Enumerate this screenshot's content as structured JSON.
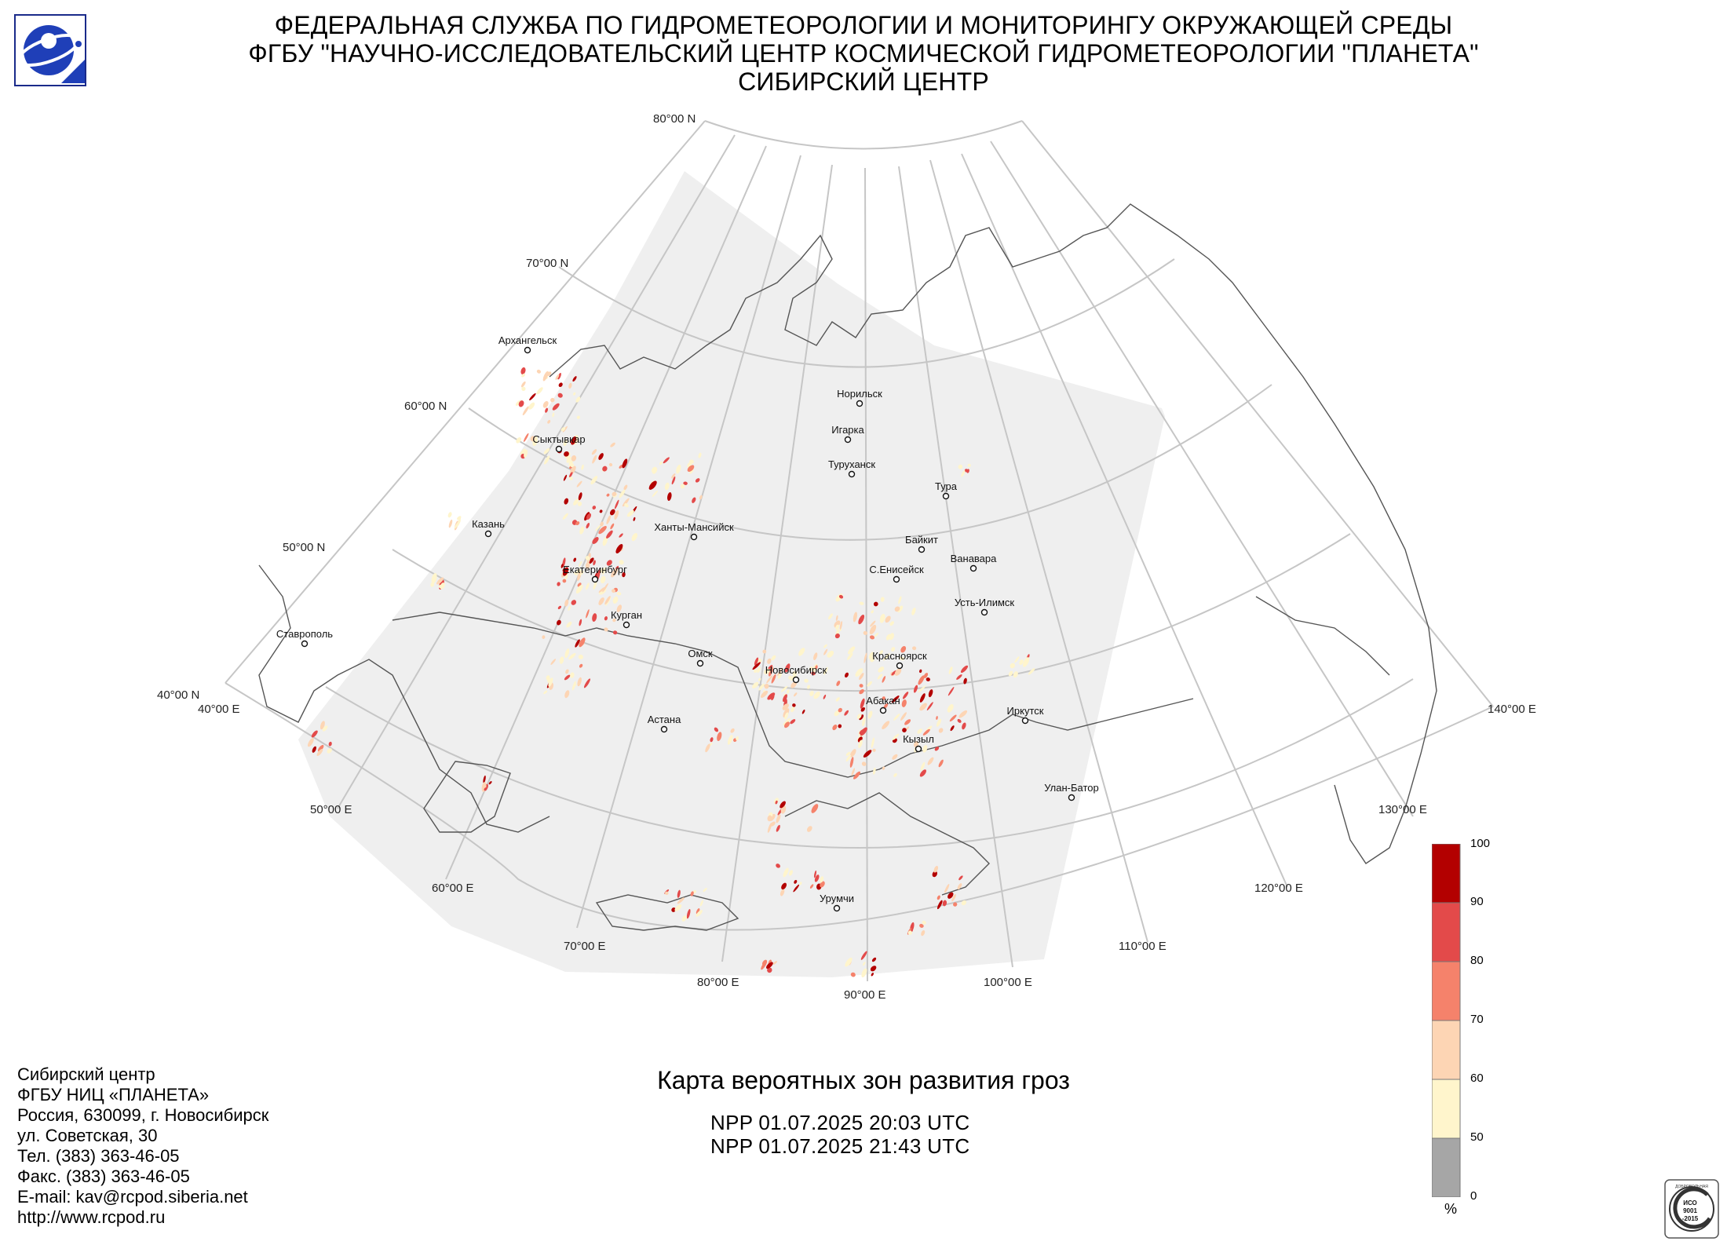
{
  "header": {
    "line1": "ФЕДЕРАЛЬНАЯ СЛУЖБА ПО ГИДРОМЕТЕОРОЛОГИИ И МОНИТОРИНГУ ОКРУЖАЮЩЕЙ СРЕДЫ",
    "line2": "ФГБУ \"НАУЧНО-ИССЛЕДОВАТЕЛЬСКИЙ ЦЕНТР КОСМИЧЕСКОЙ ГИДРОМЕТЕОРОЛОГИИ \"ПЛАНЕТА\"",
    "line3": "СИБИРСКИЙ ЦЕНТР"
  },
  "map": {
    "title": "Карта вероятных зон развития гроз",
    "passes": [
      "NPP 01.07.2025  20:03 UTC",
      "NPP 01.07.2025  21:43 UTC"
    ],
    "lat_labels": [
      "80°00 N",
      "70°00 N",
      "60°00 N",
      "50°00 N",
      "40°00 N"
    ],
    "lon_labels": [
      "40°00 E",
      "50°00 E",
      "60°00 E",
      "70°00 E",
      "80°00 E",
      "90°00 E",
      "100°00 E",
      "110°00 E",
      "120°00 E",
      "130°00 E",
      "140°00 E"
    ],
    "cities": [
      {
        "name": "Архангельск"
      },
      {
        "name": "Норильск"
      },
      {
        "name": "Игарка"
      },
      {
        "name": "Сыктывкар"
      },
      {
        "name": "Туруханск"
      },
      {
        "name": "Тура"
      },
      {
        "name": "Казань"
      },
      {
        "name": "Ханты-Мансийск"
      },
      {
        "name": "Байкит"
      },
      {
        "name": "Ванавара"
      },
      {
        "name": "Екатеринбург"
      },
      {
        "name": "С.Енисейск"
      },
      {
        "name": "Усть-Илимск"
      },
      {
        "name": "Курган"
      },
      {
        "name": "Ставрополь"
      },
      {
        "name": "Омск"
      },
      {
        "name": "Красноярск"
      },
      {
        "name": "Новосибирск"
      },
      {
        "name": "Абакан"
      },
      {
        "name": "Иркутск"
      },
      {
        "name": "Астана"
      },
      {
        "name": "Кызыл"
      },
      {
        "name": "Улан-Батор"
      },
      {
        "name": "Урумчи"
      }
    ]
  },
  "colorbar": {
    "ticks": [
      "100",
      "90",
      "80",
      "70",
      "60",
      "50",
      "0"
    ],
    "unit": "%",
    "colors": [
      "#b30000",
      "#e34a4a",
      "#f5826b",
      "#fdd5b4",
      "#fff5cc",
      "#a6a6a6"
    ]
  },
  "address": {
    "lines": [
      "Сибирский центр",
      "ФГБУ НИЦ «ПЛАНЕТА»",
      "Россия, 630099, г. Новосибирск",
      "ул. Советская, 30",
      "Тел. (383) 363-46-05",
      "Факс. (383) 363-46-05",
      "E-mail: kav@rcpod.siberia.net",
      "http://www.rcpod.ru"
    ]
  },
  "cert": {
    "top": "ДОБРОВОЛЬНАЯ",
    "iso": "ИСО",
    "num": "9001",
    "year": "-2015"
  }
}
